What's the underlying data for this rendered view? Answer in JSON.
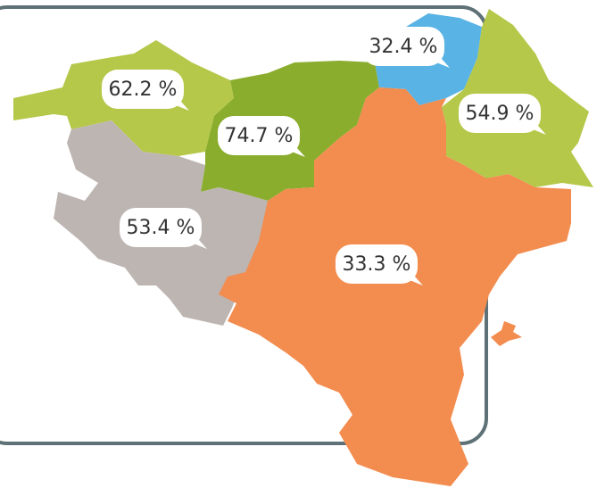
{
  "regions": [
    {
      "label": "62.2 %",
      "color": "#b5c84a"
    },
    {
      "label": "74.7 %",
      "color": "#8aad2d"
    },
    {
      "label": "32.4 %",
      "color": "#59b3e4"
    },
    {
      "label": "54.9 %",
      "color": "#b5c84a"
    },
    {
      "label": "53.4 %",
      "color": "#bdb5b1"
    },
    {
      "label": "33.3 %",
      "color": "#f38c4f"
    }
  ]
}
